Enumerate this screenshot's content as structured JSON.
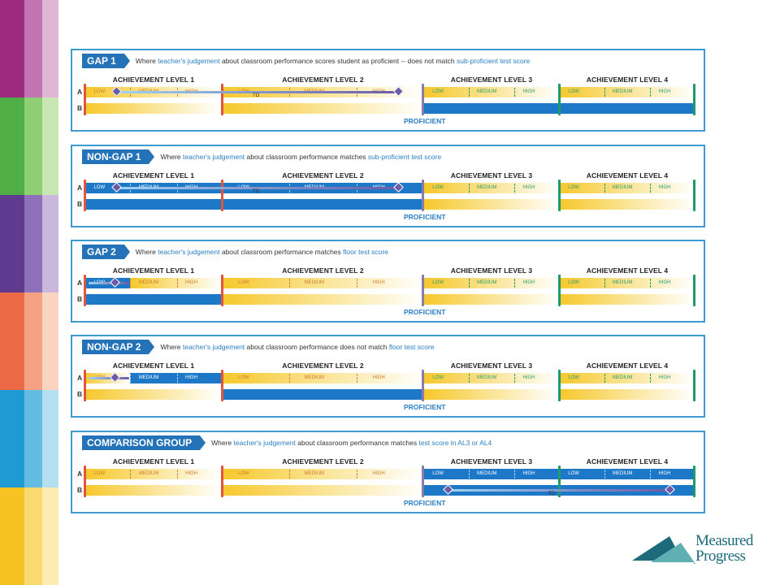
{
  "stripes": [
    {
      "colors": [
        "#9c2a7e",
        "#c173b2",
        "#e0b6d6"
      ]
    },
    {
      "colors": [
        "#4fae46",
        "#8fcf74",
        "#c7e6b3"
      ]
    },
    {
      "colors": [
        "#5e3b8f",
        "#8d6fba",
        "#c9b8dc"
      ]
    },
    {
      "colors": [
        "#ec6a45",
        "#f5a183",
        "#fbd3c1"
      ]
    },
    {
      "colors": [
        "#1e9bd2",
        "#63bde3",
        "#b4dff1"
      ]
    },
    {
      "colors": [
        "#f7c322",
        "#f9da70",
        "#fcecb2"
      ]
    }
  ],
  "common": {
    "levels": [
      "ACHIEVEMENT LEVEL 1",
      "ACHIEVEMENT LEVEL 2",
      "ACHIEVEMENT LEVEL 3",
      "ACHIEVEMENT LEVEL 4"
    ],
    "sub_low": "LOW",
    "sub_medium": "MEDIUM",
    "sub_high": "HIGH",
    "row_a": "A",
    "row_b": "B",
    "proficient": "PROFICIENT",
    "to": "TO"
  },
  "colors": {
    "panel_border": "#3e9bcf",
    "tag_bg": "#2472b8",
    "blue_bar": "#1d78c8",
    "gold_bar": "#f6c82c",
    "highlight_text": "#2a7fc2",
    "diamond": "#6b5ba8"
  },
  "panels": [
    {
      "tag": "GAP 1",
      "desc": [
        {
          "t": "Where "
        },
        {
          "t": "teacher's judgement",
          "hl": true
        },
        {
          "t": " about classroom performance scores student as proficient -- does not match "
        },
        {
          "t": "sub-proficient test score",
          "hl": true
        }
      ]
    },
    {
      "tag": "NON-GAP 1",
      "desc": [
        {
          "t": "Where "
        },
        {
          "t": "teacher's judgement",
          "hl": true
        },
        {
          "t": " about classroom performance matches "
        },
        {
          "t": "sub-proficient test score",
          "hl": true
        }
      ]
    },
    {
      "tag": "GAP 2",
      "desc": [
        {
          "t": "Where "
        },
        {
          "t": "teacher's judgement",
          "hl": true
        },
        {
          "t": " about classroom performance matches "
        },
        {
          "t": "floor test score",
          "hl": true
        }
      ]
    },
    {
      "tag": "NON-GAP 2",
      "desc": [
        {
          "t": "Where "
        },
        {
          "t": "teacher's judgement",
          "hl": true
        },
        {
          "t": " about classroom performance does not match "
        },
        {
          "t": "floor test score",
          "hl": true
        }
      ]
    },
    {
      "tag": "COMPARISON GROUP",
      "desc": [
        {
          "t": "Where "
        },
        {
          "t": "teacher's judgement",
          "hl": true
        },
        {
          "t": " about classroom performance matches "
        },
        {
          "t": "test score in AL3 or AL4",
          "hl": true
        }
      ]
    }
  ],
  "logo": {
    "line1": "Measured",
    "line2": "Progress",
    "color": "#1d6a7a"
  }
}
